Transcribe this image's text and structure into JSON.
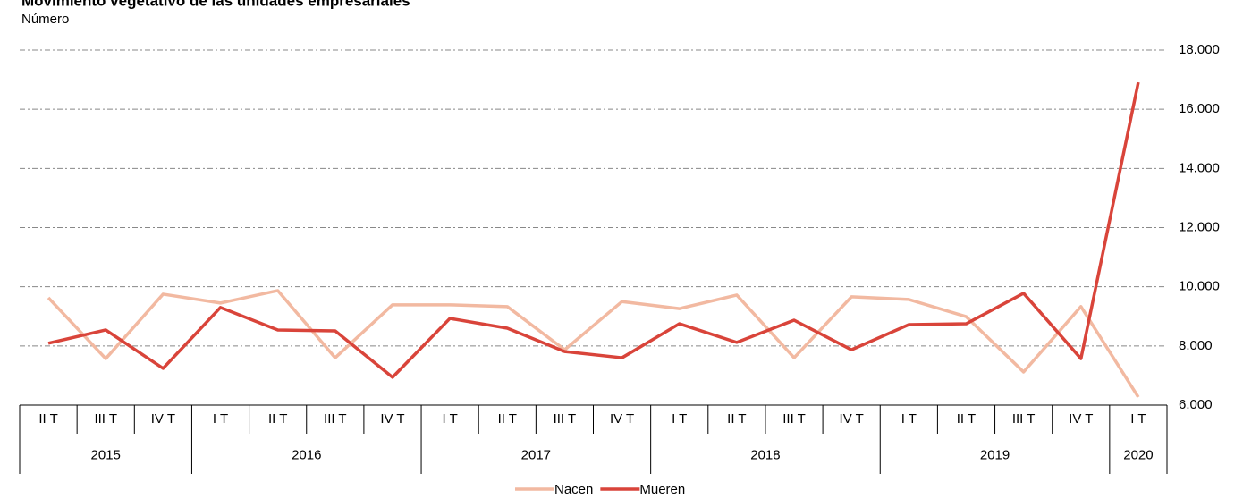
{
  "chart_data": {
    "type": "line",
    "title": "Movimiento vegetativo de las unidades empresariales",
    "subtitle": "Número",
    "categories": [
      "II T",
      "III T",
      "IV T",
      "I T",
      "II T",
      "III T",
      "IV T",
      "I T",
      "II T",
      "III T",
      "IV T",
      "I T",
      "II T",
      "III T",
      "IV T",
      "I T",
      "II T",
      "III T",
      "IV T",
      "I T"
    ],
    "years": [
      "2015",
      null,
      null,
      "2016",
      null,
      null,
      null,
      "2017",
      null,
      null,
      null,
      "2018",
      null,
      null,
      null,
      "2019",
      null,
      null,
      null,
      "2020"
    ],
    "series": [
      {
        "name": "Nacen",
        "color": "#f2b9a1",
        "values": [
          9630,
          7570,
          9750,
          9450,
          9870,
          7600,
          9390,
          9390,
          9330,
          7870,
          9500,
          9260,
          9720,
          7600,
          9660,
          9570,
          8990,
          7120,
          9330,
          6270
        ]
      },
      {
        "name": "Mueren",
        "color": "#d9443a",
        "values": [
          8090,
          8540,
          7240,
          9300,
          8540,
          8510,
          6940,
          8930,
          8600,
          7810,
          7600,
          8750,
          8120,
          8870,
          7870,
          8720,
          8750,
          9780,
          7570,
          16910
        ]
      }
    ],
    "ylim": [
      6000,
      18000
    ],
    "yticks": [
      {
        "value": 6000,
        "label": "6.000"
      },
      {
        "value": 8000,
        "label": "8.000"
      },
      {
        "value": 10000,
        "label": "10.000"
      },
      {
        "value": 12000,
        "label": "12.000"
      },
      {
        "value": 14000,
        "label": "14.000"
      },
      {
        "value": 16000,
        "label": "16.000"
      },
      {
        "value": 18000,
        "label": "18.000"
      }
    ],
    "grid": true,
    "legend": "bottom"
  }
}
